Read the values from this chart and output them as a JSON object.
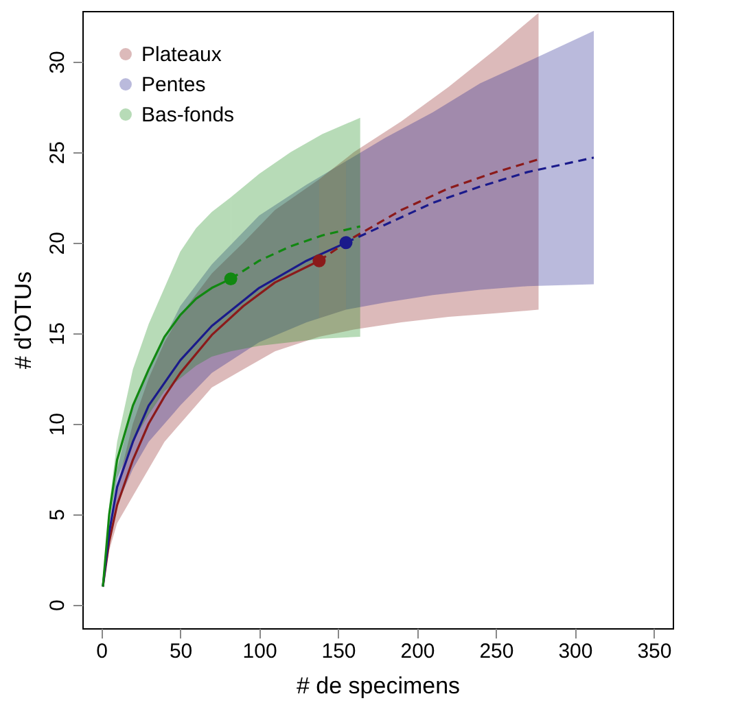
{
  "chart_data": {
    "type": "line",
    "xlabel": "# de specimens",
    "ylabel": "# d'OTUs",
    "xlim": [
      -12,
      362
    ],
    "ylim": [
      -1.3,
      32.8
    ],
    "xticks": [
      0,
      50,
      100,
      150,
      200,
      250,
      300,
      350
    ],
    "yticks": [
      0,
      5,
      10,
      15,
      20,
      25,
      30
    ],
    "legend": "top left",
    "series": [
      {
        "name": "Plateaux",
        "color": "#8b1a1a",
        "line_style": "solid",
        "x": [
          1,
          5,
          10,
          20,
          30,
          40,
          50,
          70,
          90,
          110,
          138
        ],
        "values": [
          1,
          3.5,
          5.5,
          8,
          10,
          11.5,
          12.8,
          14.9,
          16.5,
          17.8,
          19
        ],
        "lower": [
          1,
          3,
          4.5,
          6,
          7.5,
          9,
          10,
          12,
          13,
          14,
          14.8
        ],
        "upper": [
          1,
          4,
          6.5,
          10,
          12.5,
          14.5,
          16,
          18.3,
          20,
          21.8,
          23.5
        ]
      },
      {
        "name": "Pentes",
        "color": "#1a1a8b",
        "line_style": "solid",
        "x": [
          1,
          5,
          10,
          20,
          30,
          50,
          70,
          100,
          130,
          155
        ],
        "values": [
          1,
          4,
          6.5,
          9,
          11,
          13.5,
          15.4,
          17.5,
          19,
          20
        ],
        "lower": [
          1,
          3.5,
          5.5,
          7.5,
          9,
          11,
          12.8,
          14.5,
          15.6,
          16.3
        ],
        "upper": [
          1,
          4.5,
          7.5,
          11,
          13,
          16.5,
          18.8,
          21.5,
          23.2,
          24.5
        ]
      },
      {
        "name": "Bas-fonds",
        "color": "#118811",
        "line_style": "solid",
        "x": [
          1,
          5,
          10,
          20,
          30,
          40,
          50,
          60,
          70,
          82
        ],
        "values": [
          1,
          5,
          8,
          11,
          13,
          14.8,
          16,
          16.9,
          17.5,
          18
        ],
        "lower": [
          1,
          4.5,
          7,
          9,
          10.5,
          11.8,
          12.5,
          13.2,
          13.7,
          14
        ],
        "upper": [
          1,
          5.5,
          9,
          13,
          15.5,
          17.5,
          19.5,
          20.8,
          21.7,
          22.5
        ]
      },
      {
        "color": "#8b1a1a",
        "line_style": "dashed",
        "x": [
          138,
          160,
          190,
          220,
          250,
          277
        ],
        "values": [
          19,
          20.3,
          21.8,
          23,
          23.9,
          24.6
        ],
        "lower": [
          14.8,
          15.2,
          15.6,
          15.9,
          16.1,
          16.3
        ],
        "upper": [
          23.5,
          25,
          26.7,
          28.6,
          30.7,
          32.7
        ]
      },
      {
        "color": "#1a1a8b",
        "line_style": "dashed",
        "x": [
          155,
          180,
          210,
          240,
          270,
          312
        ],
        "values": [
          20,
          21,
          22.2,
          23.1,
          23.9,
          24.7
        ],
        "lower": [
          16.3,
          16.7,
          17.1,
          17.4,
          17.6,
          17.7
        ],
        "upper": [
          24.5,
          25.8,
          27.2,
          28.8,
          30,
          31.7
        ]
      },
      {
        "color": "#118811",
        "line_style": "dashed",
        "x": [
          82,
          100,
          120,
          140,
          164
        ],
        "values": [
          18,
          19,
          19.8,
          20.4,
          20.9
        ],
        "lower": [
          14,
          14.3,
          14.5,
          14.7,
          14.8
        ],
        "upper": [
          22.5,
          23.8,
          25,
          26,
          26.9
        ]
      },
      {
        "color": "#8b1a1a",
        "type": "scatter",
        "marker": "circle",
        "x": [
          138
        ],
        "values": [
          19
        ]
      },
      {
        "color": "#1a1a8b",
        "type": "scatter",
        "marker": "circle",
        "x": [
          155
        ],
        "values": [
          20
        ]
      },
      {
        "color": "#118811",
        "type": "scatter",
        "marker": "circle",
        "x": [
          82
        ],
        "values": [
          18
        ]
      }
    ]
  }
}
